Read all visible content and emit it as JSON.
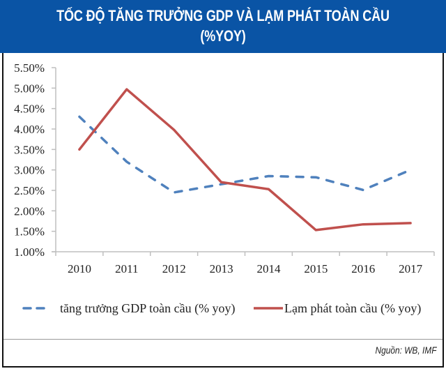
{
  "header": {
    "title_line1": "TỐC ĐỘ TĂNG TRƯỞNG GDP VÀ LẠM PHÁT TOÀN CẦU",
    "title_line2": "(%YOY)",
    "background_color": "#0a54a5"
  },
  "source": "Nguồn: WB, IMF",
  "chart_data": {
    "type": "line",
    "title": "TỐC ĐỘ TĂNG TRƯỞNG GDP VÀ LẠM PHÁT TOÀN CẦU (%YOY)",
    "xlabel": "",
    "ylabel": "",
    "categories": [
      "2010",
      "2011",
      "2012",
      "2013",
      "2014",
      "2015",
      "2016",
      "2017"
    ],
    "ylim": [
      1.0,
      5.5
    ],
    "yticks": [
      1.0,
      1.5,
      2.0,
      2.5,
      3.0,
      3.5,
      4.0,
      4.5,
      5.0,
      5.5
    ],
    "ytick_labels": [
      "1.00%",
      "1.50%",
      "2.00%",
      "2.50%",
      "3.00%",
      "3.50%",
      "4.00%",
      "4.50%",
      "5.00%",
      "5.50%"
    ],
    "grid": false,
    "legend_position": "bottom",
    "series": [
      {
        "name": "tăng trưởng GDP toàn cầu (% yoy)",
        "color": "#4f81bd",
        "style": "dashed",
        "values": [
          4.3,
          3.2,
          2.45,
          2.65,
          2.85,
          2.82,
          2.51,
          3.0
        ]
      },
      {
        "name": "Lạm phát toàn cầu (% yoy)",
        "color": "#c0504d",
        "style": "solid",
        "values": [
          3.5,
          4.97,
          3.98,
          2.7,
          2.53,
          1.53,
          1.67,
          1.7
        ]
      }
    ]
  }
}
